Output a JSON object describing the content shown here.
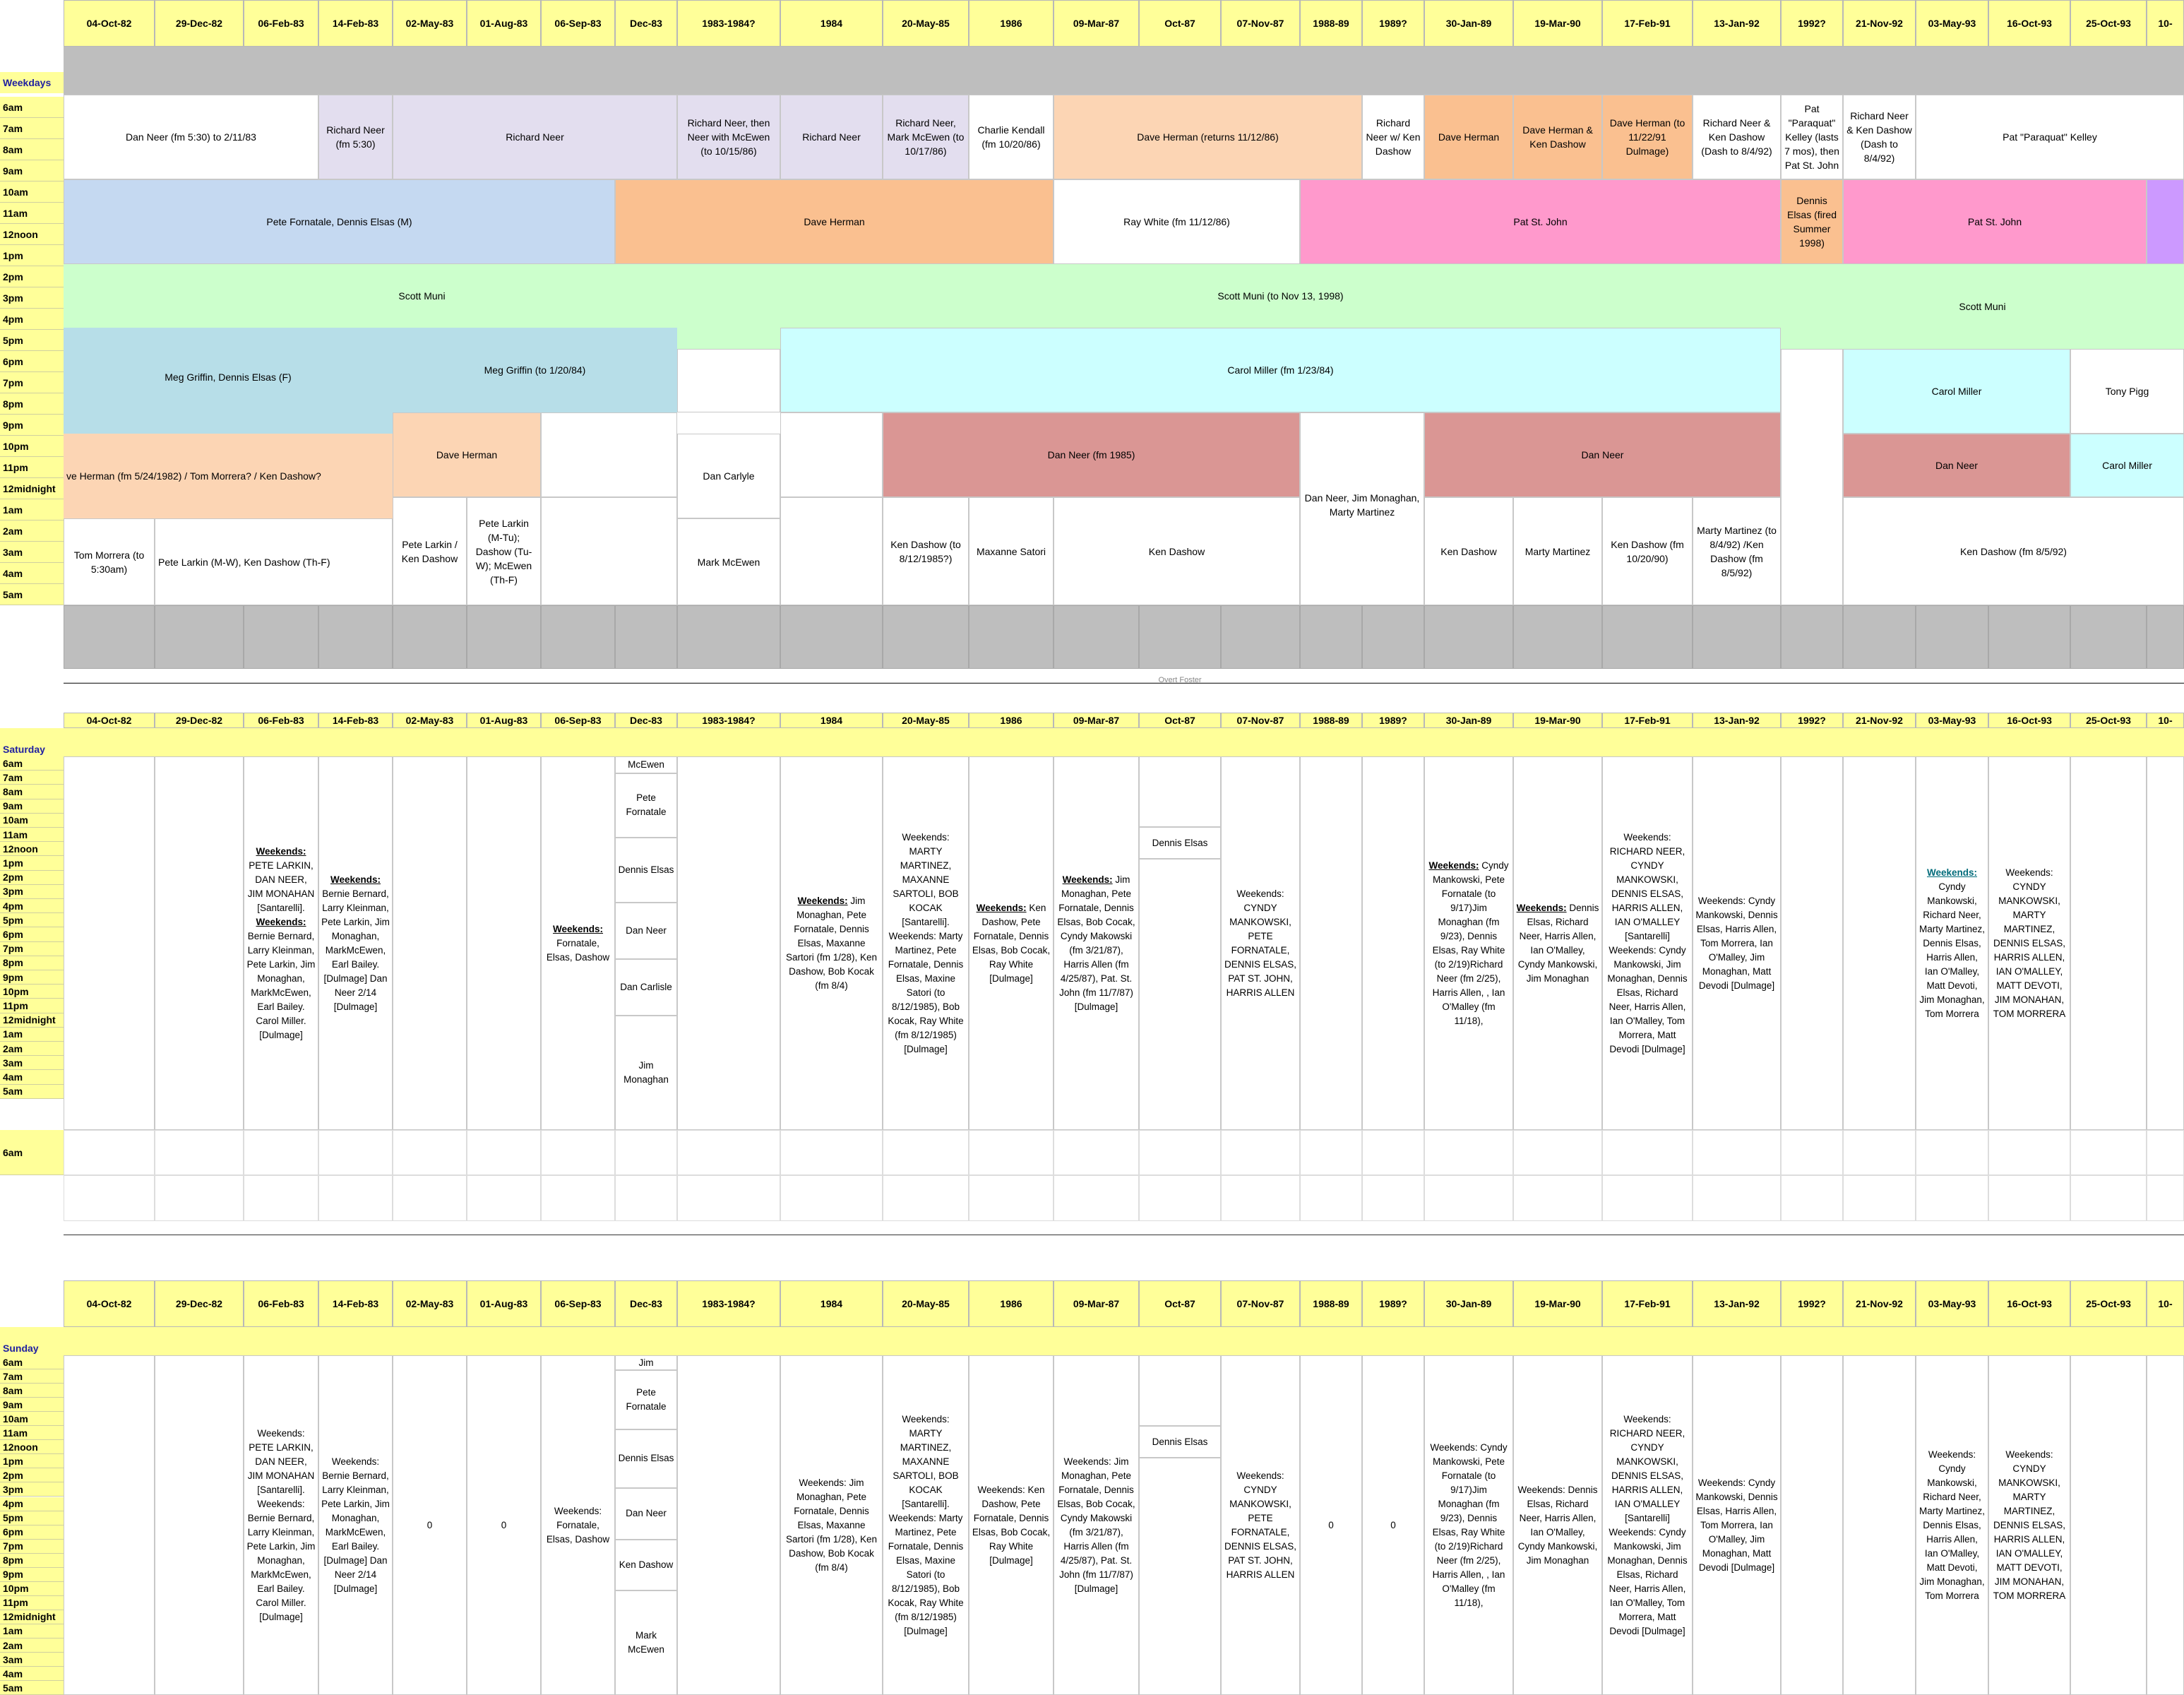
{
  "colors": {
    "header": "#ffff99",
    "gray": "#bebebe",
    "lavender": "#e3deef",
    "lightblue": "#c5d9f1",
    "peach": "#fac090",
    "lightpeach": "#fcd5b4",
    "pink": "#ff99cc",
    "mint": "#ccffcc",
    "cyan": "#ccffff",
    "powder": "#b7dee8",
    "rose": "#da9694",
    "purple": "#cc99ff",
    "link": "#006b7a"
  },
  "dates": [
    "04-Oct-82",
    "29-Dec-82",
    "06-Feb-83",
    "14-Feb-83",
    "02-May-83",
    "01-Aug-83",
    "06-Sep-83",
    "Dec-83",
    "1983-1984?",
    "1984",
    "20-May-85",
    "1986",
    "09-Mar-87",
    "Oct-87",
    "07-Nov-87",
    "1988-89",
    "1989?",
    "30-Jan-89",
    "19-Mar-90",
    "17-Feb-91",
    "13-Jan-92",
    "1992?",
    "21-Nov-92",
    "03-May-93",
    "16-Oct-93",
    "25-Oct-93",
    "10-"
  ],
  "sections": {
    "weekdays": "Weekdays",
    "saturday": "Saturday",
    "sunday": "Sunday"
  },
  "weekday_hours": [
    "6am",
    "7am",
    "8am",
    "9am",
    "10am",
    "11am",
    "12noon",
    "1pm",
    "2pm",
    "3pm",
    "4pm",
    "5pm",
    "6pm",
    "7pm",
    "8pm",
    "9pm",
    "10pm",
    "11pm",
    "12midnight",
    "1am",
    "2am",
    "3am",
    "4am",
    "5am"
  ],
  "saturday_hours": [
    "6am",
    "7am",
    "8am",
    "9am",
    "10am",
    "11am",
    "12noon",
    "1pm",
    "2pm",
    "3pm",
    "4pm",
    "5pm",
    "6pm",
    "7pm",
    "8pm",
    "9pm",
    "10pm",
    "11pm",
    "12midnight",
    "1am",
    "2am",
    "3am",
    "4am",
    "5am"
  ],
  "saturday_after": "6am",
  "sunday_hours": [
    "6am",
    "7am",
    "8am",
    "9am",
    "10am",
    "11am",
    "12noon",
    "1pm",
    "2pm",
    "3pm",
    "4pm",
    "5pm",
    "6pm",
    "7pm",
    "8pm",
    "9pm",
    "10pm",
    "11pm",
    "12midnight",
    "1am",
    "2am",
    "3am",
    "4am",
    "5am"
  ],
  "cut_text_1": "Overt Foster",
  "weekday": {
    "m1": "Dan Neer (fm 5:30) to 2/11/83",
    "m2": "Richard Neer (fm 5:30)",
    "m3": "Richard Neer",
    "m4": "Richard Neer, then Neer with McEwen (to 10/15/86)",
    "m5": "Richard Neer",
    "m6": "Richard Neer, Mark McEwen (to 10/17/86)",
    "m7": "Charlie Kendall (fm 10/20/86)",
    "m8": "Dave Herman (returns 11/12/86)",
    "m9": "Richard Neer w/ Ken Dashow",
    "m10": "Dave Herman",
    "m11": "Dave Herman & Ken Dashow",
    "m12": "Dave Herman (to 11/22/91 Dulmage)",
    "m13": "Richard Neer & Ken Dashow (Dash to 8/4/92)",
    "m14": "Pat \"Paraquat\" Kelley (lasts 7 mos), then Pat St. John",
    "m15": "Richard Neer & Ken Dashow (Dash to 8/4/92)",
    "m16": "Pat \"Paraquat\" Kelley",
    "d1": "Pete Fornatale, Dennis Elsas (M)",
    "d2": "Dave Herman",
    "d3": "Ray White (fm 11/12/86)",
    "d4": "Pat St. John",
    "d5": "Dennis Elsas (fired Summer 1998)",
    "d6": "Pat St. John",
    "a1": "Scott Muni",
    "a2": "Scott Muni  (to Nov 13, 1998)",
    "a3": "Scott Muni",
    "e1": "Meg Griffin, Dennis Elsas (F)",
    "e2": "Meg Griffin (to 1/20/84)",
    "e3": "Carol Miller  (fm 1/23/84)",
    "e4": "Carol Miller",
    "e5": "Tony Pigg",
    "n1": "ve Herman (fm 5/24/1982) / Tom Morrera? / Ken Dashow?",
    "n2": "Dave Herman",
    "n3": "Dan Carlyle",
    "n4": "Dan Neer (fm 1985)",
    "n5": "Dan Neer, Jim Monaghan, Marty Martinez",
    "n6": "Dan Neer",
    "n7": "Dan Neer",
    "n8": "Carol Miller",
    "o1": "Tom Morrera (to 5:30am)",
    "o2": "Pete Larkin (M-W), Ken Dashow (Th-F)",
    "o3": "Pete Larkin / Ken Dashow",
    "o4": "Pete Larkin (M-Tu); Dashow (Tu-W); McEwen (Th-F)",
    "o5": "Mark McEwen",
    "o6": "Ken Dashow (to 8/12/1985?)",
    "o7": "Maxanne Satori",
    "o8": "Ken Dashow",
    "o9": "Ken Dashow",
    "o10": "Marty Martinez",
    "o11": "Ken Dashow (fm 10/20/90)",
    "o12": "Marty Martinez (to 8/4/92) /Ken Dashow (fm 8/5/92)",
    "o13": "Ken Dashow (fm 8/5/92)"
  },
  "weekend": {
    "lbl": "Weekends:",
    "c2": "PETE LARKIN, DAN NEER, JIM MONAHAN [Santarelli].",
    "c2b": "Bernie Bernard, Larry Kleinman, Pete Larkin, Jim Monaghan, MarkMcEwen, Earl Bailey. Carol Miller. [Dulmage]",
    "c3": "Bernie Bernard, Larry Kleinman, Pete Larkin, Jim Monaghan, MarkMcEwen, Earl Bailey. [Dulmage] Dan Neer 2/14 [Dulmage]",
    "c6": "Fornatale, Elsas, Dashow",
    "c7sat": [
      "McEwen",
      "Pete Fornatale",
      "Dennis Elsas",
      "Dan Neer",
      "Dan Carlisle",
      "Jim Monaghan"
    ],
    "c7sun": [
      "Jim",
      "Pete Fornatale",
      "Dennis Elsas",
      "Dan Neer",
      "Ken Dashow",
      "Mark McEwen"
    ],
    "c9": "Jim Monaghan, Pete Fornatale, Dennis Elsas, Maxanne Sartori (fm 1/28), Ken Dashow, Bob Kocak (fm 8/4)",
    "c10": "MARTY MARTINEZ, MAXANNE SARTOLI, BOB KOCAK [Santarelli].",
    "c10b": "Marty Martinez, Pete Fornatale, Dennis Elsas, Maxine Satori (to 8/12/1985), Bob Kocak, Ray White (fm 8/12/1985) [Dulmage]",
    "c11": "Ken Dashow, Pete Fornatale, Dennis Elsas, Bob Cocak, Ray White [Dulmage]",
    "c12": "Jim Monaghan, Pete Fornatale, Dennis Elsas, Bob Cocak, Cyndy Makowski (fm 3/21/87), Harris Allen (fm 4/25/87), Pat. St. John (fm 11/7/87) [Dulmage]",
    "c13": "Dennis Elsas",
    "c14": "CYNDY MANKOWSKI, PETE FORNATALE, DENNIS ELSAS, PAT ST. JOHN, HARRIS ALLEN",
    "c17": "Cyndy Mankowski, Pete Fornatale (to 9/17)Jim Monaghan (fm 9/23), Dennis Elsas, Ray White (to 2/19)Richard Neer (fm 2/25), Harris Allen, , Ian O'Malley (fm 11/18),",
    "c18": "Dennis Elsas, Richard Neer, Harris Allen, Ian O'Malley, Cyndy Mankowski, Jim Monaghan",
    "c19": "RICHARD NEER, CYNDY MANKOWSKI, DENNIS ELSAS, HARRIS ALLEN, IAN O'MALLEY [Santarelli]",
    "c19b": "Cyndy Mankowski, Jim Monaghan, Dennis Elsas, Richard Neer, Harris Allen, Ian O'Malley, Tom Morrera, Matt Devodi [Dulmage]",
    "c20": "Cyndy Mankowski, Dennis Elsas, Harris Allen, Tom Morrera, Ian O'Malley, Jim Monaghan, Matt Devodi  [Dulmage]",
    "c23": "Cyndy Mankowski, Richard Neer, Marty Martinez, Dennis Elsas, Harris Allen, Ian O'Malley, Matt Devoti, Jim Monaghan, Tom Morrera",
    "c24": "CYNDY MANKOWSKI, MARTY MARTINEZ, DENNIS ELSAS, HARRIS ALLEN, IAN O'MALLEY, MATT DEVOTI, JIM MONAHAN, TOM MORRERA",
    "zero": "0"
  }
}
